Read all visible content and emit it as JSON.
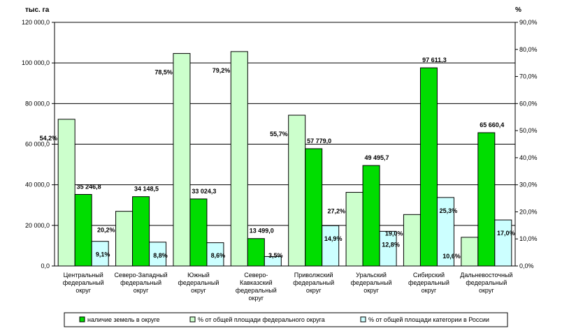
{
  "chart_data": {
    "type": "bar",
    "y_left_unit": "тыс. га",
    "y_right_unit": "%",
    "ylim_left": [
      0,
      120000
    ],
    "ylim_right": [
      0,
      90
    ],
    "left_ticks": [
      "0,0",
      "20 000,0",
      "40 000,0",
      "60 000,0",
      "80 000,0",
      "100 000,0",
      "120 000,0"
    ],
    "right_ticks": [
      "0,0%",
      "10,0%",
      "20,0%",
      "30,0%",
      "40,0%",
      "50,0%",
      "60,0%",
      "70,0%",
      "80,0%",
      "90,0%"
    ],
    "grid": true,
    "legend_position": "bottom",
    "categories": [
      [
        "Центральный",
        "федеральный",
        "округ"
      ],
      [
        "Северо-Западный",
        "федеральный",
        "округ"
      ],
      [
        "Южный",
        "федеральный",
        "округ"
      ],
      [
        "Северо-",
        "Кавказский",
        "федеральный",
        "округ"
      ],
      [
        "Приволжский",
        "федеральный",
        "округ"
      ],
      [
        "Уральский",
        "федеральный",
        "округ"
      ],
      [
        "Сибирский",
        "федеральный",
        "округ"
      ],
      [
        "Дальневосточный",
        "федеральный",
        "округ"
      ]
    ],
    "series": [
      {
        "name": "% от общей площади федерального округа",
        "axis": "right",
        "color": "#ccffcc",
        "values": [
          54.2,
          20.2,
          78.5,
          79.2,
          55.7,
          27.2,
          19.0,
          10.6
        ],
        "labels": [
          "54,2%",
          "20,2%",
          "78,5%",
          "79,2%",
          "55,7%",
          "27,2%",
          "19,0%",
          "10,6%"
        ]
      },
      {
        "name": "наличие земель в округе",
        "axis": "left",
        "color": "#00dd00",
        "values": [
          35246.8,
          34148.5,
          33024.3,
          13499.0,
          57779.0,
          49495.7,
          97611.3,
          65660.4
        ],
        "labels": [
          "35 246,8",
          "34 148,5",
          "33 024,3",
          "13 499,0",
          "57 779,0",
          "49 495,7",
          "97 611,3",
          "65 660,4"
        ]
      },
      {
        "name": "% от общей площади категории в России",
        "axis": "right",
        "color": "#ccffff",
        "values": [
          9.1,
          8.8,
          8.6,
          3.5,
          14.9,
          12.8,
          25.3,
          17.0
        ],
        "labels": [
          "9,1%",
          "8,8%",
          "8,6%",
          "3,5%",
          "14,9%",
          "12,8%",
          "25,3%",
          "17,0%"
        ]
      }
    ],
    "legend_order": [
      1,
      0,
      2
    ]
  }
}
